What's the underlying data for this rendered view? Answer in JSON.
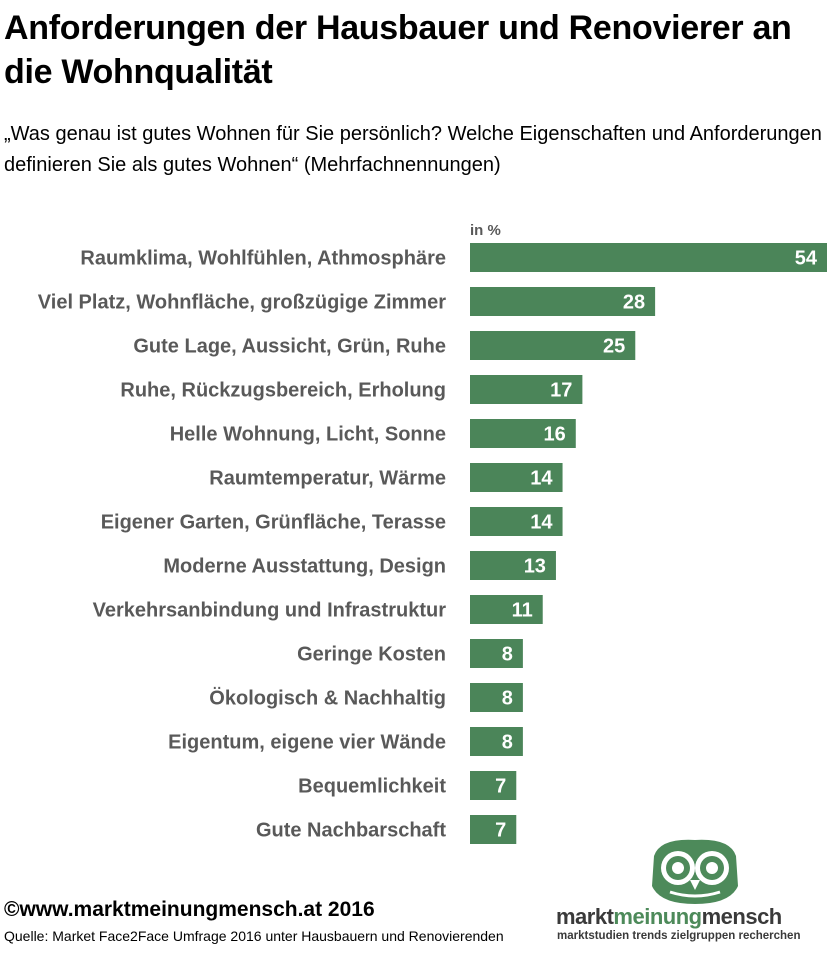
{
  "title": "Anforderungen der Hausbauer und Renovierer an die Wohnqualität",
  "subtitle": "„Was genau ist gutes Wohnen für Sie persönlich? Welche Eigenschaften und Anforderungen definieren Sie als gutes Wohnen“ (Mehrfachnennungen)",
  "colors": {
    "bar": "#4b8559",
    "label": "#595959",
    "bar_text": "#ffffff"
  },
  "chart_data": {
    "type": "bar",
    "orientation": "horizontal",
    "unit_label": "in %",
    "categories": [
      "Raumklima, Wohlfühlen, Athmosphäre",
      "Viel Platz, Wohnfläche, großzügige Zimmer",
      "Gute Lage, Aussicht, Grün, Ruhe",
      "Ruhe, Rückzugsbereich, Erholung",
      "Helle Wohnung, Licht, Sonne",
      "Raumtemperatur, Wärme",
      "Eigener Garten, Grünfläche, Terasse",
      "Moderne Ausstattung, Design",
      "Verkehrsanbindung und Infrastruktur",
      "Geringe Kosten",
      "Ökologisch & Nachhaltig",
      "Eigentum, eigene vier Wände",
      "Bequemlichkeit",
      "Gute Nachbarschaft"
    ],
    "values": [
      54,
      28,
      25,
      17,
      16,
      14,
      14,
      13,
      11,
      8,
      8,
      8,
      7,
      7
    ],
    "xlim": [
      0,
      54
    ],
    "grid": false,
    "legend": "none"
  },
  "footer": {
    "copyright": "©www.marktmeinungmensch.at 2016",
    "source": "Quelle: Market Face2Face Umfrage 2016 unter Hausbauern und Renovierenden"
  },
  "logo": {
    "word_part1": "markt",
    "word_part2": "meinung",
    "word_part3": "mensch",
    "tagline": "marktstudien trends zielgruppen recherchen"
  }
}
